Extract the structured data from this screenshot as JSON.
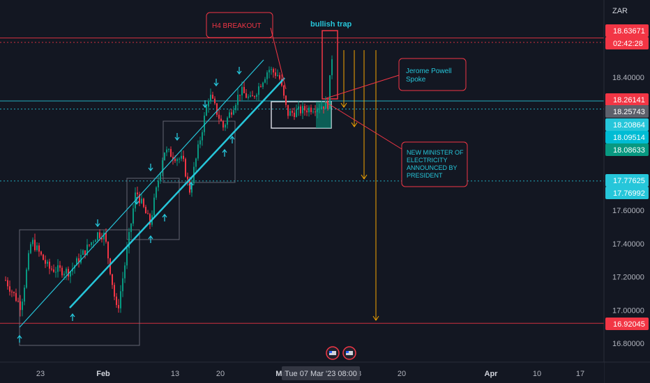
{
  "chart_data": {
    "type": "candlestick",
    "currency": "ZAR",
    "yaxis_ticks": [
      {
        "label": "18.40000",
        "value": 18.4
      },
      {
        "label": "17.60000",
        "value": 17.6
      },
      {
        "label": "17.40000",
        "value": 17.4
      },
      {
        "label": "17.20000",
        "value": 17.2
      },
      {
        "label": "17.00000",
        "value": 17.0
      },
      {
        "label": "16.80000",
        "value": 16.8
      }
    ],
    "price_badges": [
      {
        "label": "18.63671",
        "value": 18.63671,
        "color": "#f23645"
      },
      {
        "label": "02:42:28",
        "value": 18.58,
        "color": "#f23645"
      },
      {
        "label": "18.26141",
        "value": 18.26141,
        "color": "#f23645"
      },
      {
        "label": "18.25743",
        "value": 18.25743,
        "color": "#5d606b"
      },
      {
        "label": "18.20864",
        "value": 18.20864,
        "color": "#26c6da"
      },
      {
        "label": "18.09514",
        "value": 18.09514,
        "color": "#00bcd4"
      },
      {
        "label": "18.08633",
        "value": 18.08633,
        "color": "#089981"
      },
      {
        "label": "17.77625",
        "value": 17.77625,
        "color": "#26c6da"
      },
      {
        "label": "17.76992",
        "value": 17.76992,
        "color": "#26c6da"
      },
      {
        "label": "16.92045",
        "value": 16.92045,
        "color": "#f23645"
      }
    ],
    "horizontal_lines": [
      {
        "value": 18.63671,
        "color": "#f23645",
        "style": "solid"
      },
      {
        "value": 18.61,
        "color": "#f23645",
        "style": "dotted"
      },
      {
        "value": 18.25743,
        "color": "#26c6da",
        "style": "solid"
      },
      {
        "value": 18.20864,
        "color": "#26c6da",
        "style": "dotted"
      },
      {
        "value": 17.77625,
        "color": "#26c6da",
        "style": "dotted"
      },
      {
        "value": 16.92045,
        "color": "#f23645",
        "style": "solid"
      }
    ],
    "xaxis_ticks": [
      {
        "label": "23",
        "bold": false
      },
      {
        "label": "Feb",
        "bold": true
      },
      {
        "label": "13",
        "bold": false
      },
      {
        "label": "20",
        "bold": false
      },
      {
        "label": "Mar",
        "bold": true
      },
      {
        "label": "13",
        "bold": false
      },
      {
        "label": "20",
        "bold": false
      },
      {
        "label": "Apr",
        "bold": true
      },
      {
        "label": "10",
        "bold": false
      },
      {
        "label": "17",
        "bold": false
      }
    ],
    "crosshair_date": "Tue 07 Mar '23   08:00",
    "annotations": [
      {
        "text": "H4 BREAKOUT",
        "color": "#f23645"
      },
      {
        "text": "bullish trap",
        "color": "#26c6da"
      },
      {
        "text": "Jerome Powell\nSpoke",
        "color": "#26c6da"
      },
      {
        "text": "NEW MINISTER OF\nELECTRICITY\nANNOUNCED BY\nPRESIDENT",
        "color": "#26c6da"
      }
    ],
    "colors": {
      "background": "#131722",
      "up": "#089981",
      "down": "#f23645",
      "channel": "#26c6da",
      "projection": "#f7a600"
    }
  }
}
